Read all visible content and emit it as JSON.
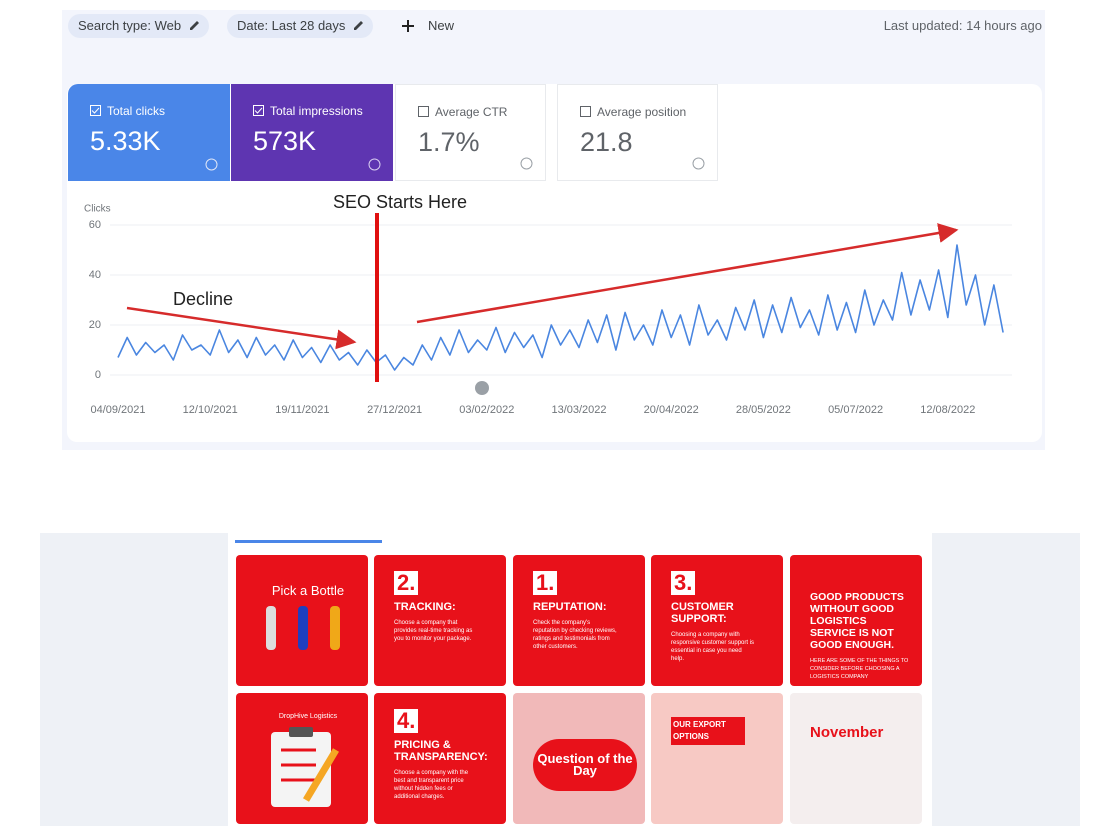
{
  "toolbar": {
    "search_type": "Search type: Web",
    "date": "Date: Last 28 days",
    "new": "New",
    "last_updated": "Last updated: 14 hours ago"
  },
  "metrics": [
    {
      "label": "Total clicks",
      "value": "5.33K"
    },
    {
      "label": "Total impressions",
      "value": "573K"
    },
    {
      "label": "Average CTR",
      "value": "1.7%"
    },
    {
      "label": "Average position",
      "value": "21.8"
    }
  ],
  "chart_data": {
    "type": "line",
    "ylabel": "Clicks",
    "color": "#4a86e0",
    "ylim": [
      0,
      60
    ],
    "yticks": [
      0,
      20,
      40,
      60
    ],
    "grid": true,
    "annotations": [
      "SEO Starts Here",
      "Decline"
    ],
    "categories": [
      "04/09/2021",
      null,
      null,
      null,
      null,
      null,
      null,
      null,
      null,
      null,
      "12/10/2021",
      null,
      null,
      null,
      null,
      null,
      null,
      null,
      null,
      null,
      "19/11/2021",
      null,
      null,
      null,
      null,
      null,
      null,
      null,
      null,
      null,
      "27/12/2021",
      null,
      null,
      null,
      null,
      null,
      null,
      null,
      null,
      null,
      "03/02/2022",
      null,
      null,
      null,
      null,
      null,
      null,
      null,
      null,
      null,
      "13/03/2022",
      null,
      null,
      null,
      null,
      null,
      null,
      null,
      null,
      null,
      "20/04/2022",
      null,
      null,
      null,
      null,
      null,
      null,
      null,
      null,
      null,
      "28/05/2022",
      null,
      null,
      null,
      null,
      null,
      null,
      null,
      null,
      null,
      "05/07/2022",
      null,
      null,
      null,
      null,
      null,
      null,
      null,
      null,
      null,
      "12/08/2022",
      null,
      null,
      null,
      null,
      null,
      null
    ],
    "values": [
      7,
      15,
      8,
      13,
      9,
      12,
      6,
      16,
      10,
      12,
      8,
      18,
      9,
      14,
      7,
      15,
      8,
      12,
      6,
      14,
      7,
      11,
      5,
      12,
      6,
      9,
      4,
      10,
      5,
      8,
      2,
      7,
      4,
      12,
      6,
      15,
      8,
      18,
      9,
      14,
      10,
      19,
      9,
      17,
      11,
      16,
      7,
      20,
      12,
      18,
      11,
      22,
      13,
      24,
      10,
      25,
      14,
      20,
      12,
      26,
      15,
      24,
      12,
      28,
      16,
      22,
      14,
      27,
      18,
      30,
      15,
      28,
      17,
      31,
      19,
      26,
      16,
      32,
      18,
      29,
      17,
      34,
      20,
      30,
      22,
      41,
      24,
      38,
      26,
      42,
      23,
      52,
      28,
      40,
      20,
      36,
      17
    ]
  },
  "posts": [
    {
      "title": "Pick a Bottle"
    },
    {
      "number": "2.",
      "heading": "TRACKING:",
      "body": "Choose a company that provides real-time tracking as you to monitor your package."
    },
    {
      "number": "1.",
      "heading": "REPUTATION:",
      "body": "Check the company's reputation by checking reviews, ratings and testimonials from other customers."
    },
    {
      "number": "3.",
      "heading": "CUSTOMER SUPPORT:",
      "body": "Choosing a company with responsive customer support is essential in case you need help."
    },
    {
      "heading": "GOOD PRODUCTS WITHOUT GOOD LOGISTICS SERVICE IS NOT GOOD ENOUGH.",
      "body": "HERE ARE SOME OF THE THINGS TO CONSIDER BEFORE CHOOSING A LOGISTICS COMPANY"
    },
    {
      "title": "DropHive Logistics"
    },
    {
      "number": "4.",
      "heading": "PRICING & TRANSPARENCY:",
      "body": "Choose a company with the best and transparent price without hidden fees or additional charges."
    },
    {
      "heading": "Question of the Day"
    },
    {
      "heading": "OUR EXPORT OPTIONS"
    },
    {
      "heading": "November"
    }
  ]
}
